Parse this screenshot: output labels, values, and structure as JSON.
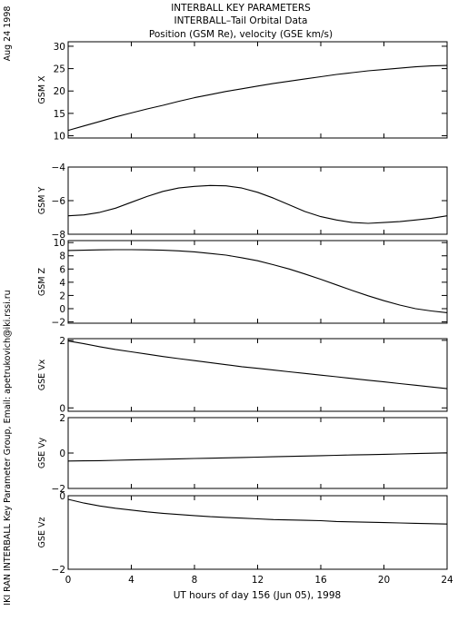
{
  "header": {
    "line1": "INTERBALL KEY PARAMETERS",
    "line2": "INTERBALL–Tail Orbital Data",
    "line3": "Position (GSM Re), velocity (GSE km/s)"
  },
  "side": {
    "date": "Aug 24 1998",
    "credit": "IKI RAN INTERBALL Key Parameter Group, Email: apetrukovich@iki.rssi.ru"
  },
  "chart_data": {
    "type": "line",
    "xlabel": "UT hours of day 156 (Jun 05), 1998",
    "xlim": [
      0,
      24
    ],
    "xticks": [
      0,
      4,
      8,
      12,
      16,
      20,
      24
    ],
    "x": [
      0,
      1,
      2,
      3,
      4,
      5,
      6,
      7,
      8,
      9,
      10,
      11,
      12,
      13,
      14,
      15,
      16,
      17,
      18,
      19,
      20,
      21,
      22,
      23,
      24
    ],
    "panels": [
      {
        "ylabel": "GSM X",
        "ylim": [
          9.5,
          31
        ],
        "yticks": [
          10,
          15,
          20,
          25,
          30
        ],
        "values": [
          11.2,
          12.2,
          13.2,
          14.2,
          15.1,
          16.0,
          16.8,
          17.7,
          18.5,
          19.2,
          19.9,
          20.5,
          21.1,
          21.7,
          22.2,
          22.7,
          23.2,
          23.7,
          24.1,
          24.5,
          24.8,
          25.1,
          25.4,
          25.6,
          25.7
        ]
      },
      {
        "ylabel": "GSM Y",
        "ylim": [
          -8,
          -4
        ],
        "yticks": [
          -8,
          -6,
          -4
        ],
        "values": [
          -6.9,
          -6.85,
          -6.7,
          -6.45,
          -6.1,
          -5.75,
          -5.45,
          -5.25,
          -5.15,
          -5.1,
          -5.12,
          -5.25,
          -5.5,
          -5.85,
          -6.25,
          -6.65,
          -6.95,
          -7.15,
          -7.3,
          -7.35,
          -7.3,
          -7.25,
          -7.15,
          -7.05,
          -6.9
        ]
      },
      {
        "ylabel": "GSM Z",
        "ylim": [
          -2.2,
          10.3
        ],
        "yticks": [
          -2,
          0,
          2,
          4,
          6,
          8,
          10
        ],
        "values": [
          8.8,
          8.85,
          8.9,
          8.92,
          8.92,
          8.9,
          8.85,
          8.75,
          8.6,
          8.35,
          8.1,
          7.7,
          7.25,
          6.65,
          6.0,
          5.25,
          4.45,
          3.6,
          2.75,
          1.95,
          1.2,
          0.55,
          0.0,
          -0.35,
          -0.6
        ]
      },
      {
        "ylabel": "GSE Vx",
        "ylim": [
          -0.1,
          2.05
        ],
        "yticks": [
          0,
          2
        ],
        "values": [
          1.98,
          1.9,
          1.81,
          1.73,
          1.66,
          1.59,
          1.52,
          1.46,
          1.4,
          1.34,
          1.28,
          1.22,
          1.17,
          1.12,
          1.07,
          1.02,
          0.97,
          0.92,
          0.87,
          0.82,
          0.77,
          0.72,
          0.67,
          0.62,
          0.57
        ]
      },
      {
        "ylabel": "GSE Vy",
        "ylim": [
          -2,
          2
        ],
        "yticks": [
          -2,
          0,
          2
        ],
        "values": [
          -0.45,
          -0.44,
          -0.43,
          -0.41,
          -0.39,
          -0.37,
          -0.35,
          -0.33,
          -0.31,
          -0.29,
          -0.27,
          -0.25,
          -0.23,
          -0.21,
          -0.19,
          -0.17,
          -0.15,
          -0.13,
          -0.11,
          -0.09,
          -0.07,
          -0.05,
          -0.03,
          -0.01,
          0.01
        ]
      },
      {
        "ylabel": "GSE Vz",
        "ylim": [
          -2,
          0
        ],
        "yticks": [
          -2,
          0
        ],
        "values": [
          -0.1,
          -0.2,
          -0.28,
          -0.34,
          -0.39,
          -0.44,
          -0.48,
          -0.51,
          -0.54,
          -0.57,
          -0.59,
          -0.61,
          -0.63,
          -0.65,
          -0.66,
          -0.67,
          -0.68,
          -0.7,
          -0.71,
          -0.72,
          -0.73,
          -0.74,
          -0.75,
          -0.76,
          -0.77
        ]
      }
    ]
  }
}
